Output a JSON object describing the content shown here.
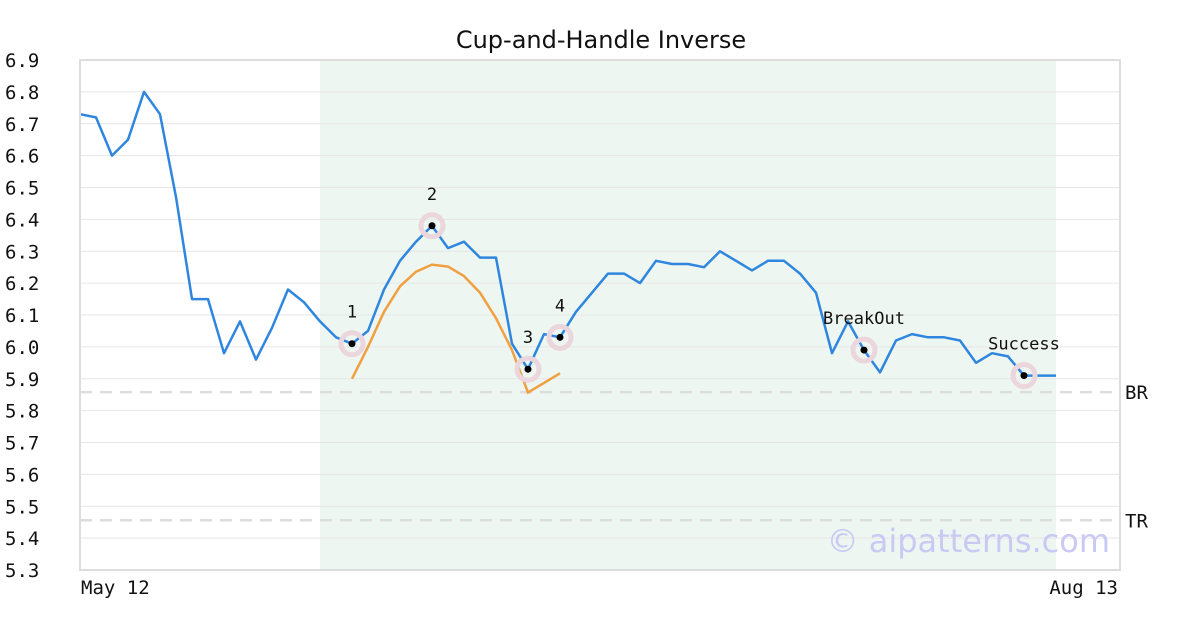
{
  "chart_data": {
    "type": "line",
    "title": "Cup-and-Handle Inverse",
    "xlabel": "",
    "ylabel": "",
    "ylim": [
      5.3,
      6.9
    ],
    "yticks": [
      "6.9",
      "6.8",
      "6.7",
      "6.6",
      "6.5",
      "6.4",
      "6.3",
      "6.2",
      "6.1",
      "6.0",
      "5.9",
      "5.8",
      "5.7",
      "5.6",
      "5.5",
      "5.4",
      "5.3"
    ],
    "x_start_label": "May 12",
    "x_end_label": "Aug 13",
    "grid": true,
    "pattern_region_index": [
      15,
      61
    ],
    "series": [
      {
        "color": "#2e86de",
        "values": [
          6.73,
          6.72,
          6.6,
          6.65,
          6.8,
          6.73,
          6.47,
          6.15,
          6.15,
          5.98,
          6.08,
          5.96,
          6.06,
          6.18,
          6.14,
          6.08,
          6.03,
          6.01,
          6.05,
          6.18,
          6.27,
          6.33,
          6.38,
          6.31,
          6.33,
          6.28,
          6.28,
          6.01,
          5.93,
          6.04,
          6.03,
          6.11,
          6.17,
          6.23,
          6.23,
          6.2,
          6.27,
          6.26,
          6.26,
          6.25,
          6.3,
          6.27,
          6.24,
          6.27,
          6.27,
          6.23,
          6.17,
          5.98,
          6.08,
          5.99,
          5.92,
          6.02,
          6.04,
          6.03,
          6.03,
          6.02,
          5.95,
          5.98,
          5.97,
          5.91,
          5.91,
          5.91
        ]
      },
      {
        "color": "#f0a040",
        "start_index": 17,
        "values": [
          5.9,
          6.0,
          6.11,
          6.19,
          6.236,
          6.258,
          6.252,
          6.222,
          6.17,
          6.09,
          5.99,
          5.857,
          5.887,
          5.917
        ]
      }
    ],
    "levels": [
      {
        "label": "BR",
        "value": 5.858
      },
      {
        "label": "TR",
        "value": 5.456
      }
    ],
    "annotations": [
      {
        "label": "1",
        "index": 17,
        "value": 6.01
      },
      {
        "label": "2",
        "index": 22,
        "value": 6.38
      },
      {
        "label": "3",
        "index": 28,
        "value": 5.93
      },
      {
        "label": "4",
        "index": 30,
        "value": 6.03
      },
      {
        "label": "BreakOut",
        "index": 49,
        "value": 5.99
      },
      {
        "label": "Success",
        "index": 59,
        "value": 5.91
      }
    ],
    "watermark": "© aipatterns.com",
    "colors": {
      "price_line": "#2e86de",
      "cup_curve": "#f0a040",
      "region": "#eef6f2",
      "marker_halo": "#ecd6de",
      "level_line": "#dddddd"
    }
  }
}
